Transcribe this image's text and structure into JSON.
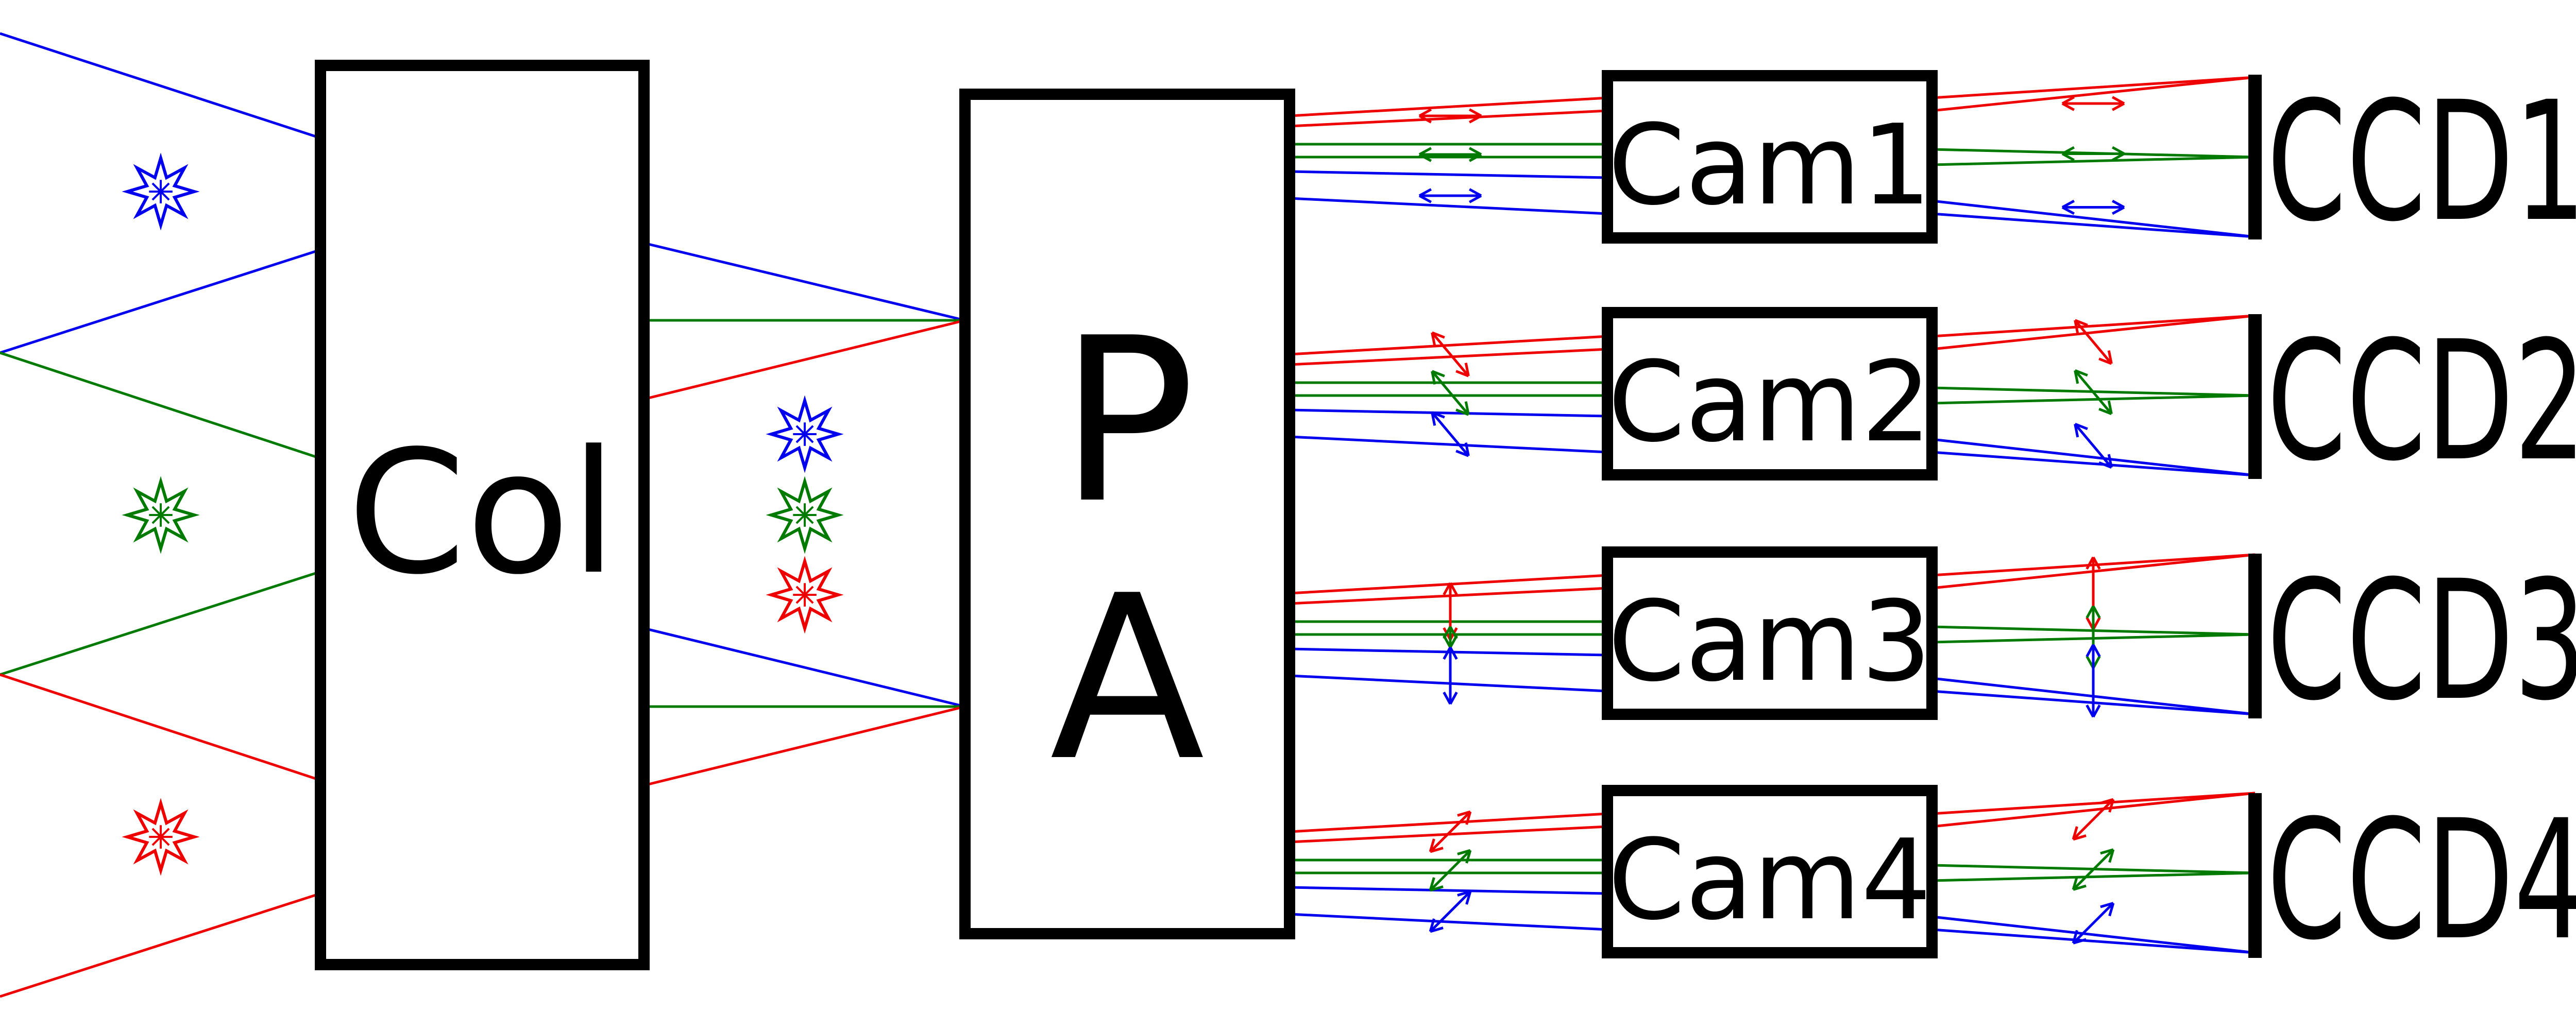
{
  "colors": {
    "blue": "#0000ee",
    "green": "#007a00",
    "red": "#ee0000",
    "box": "#000000"
  },
  "labels": {
    "collimator": "Col",
    "pa_top": "P",
    "pa_bottom": "A",
    "cameras": [
      "Cam1",
      "Cam2",
      "Cam3",
      "Cam4"
    ],
    "detectors": [
      "CCD1",
      "CCD2",
      "CCD3",
      "CCD4"
    ]
  },
  "channels": [
    {
      "camera": "Cam1",
      "detector": "CCD1",
      "polarization": "horizontal"
    },
    {
      "camera": "Cam2",
      "detector": "CCD2",
      "polarization": "diagonal-down"
    },
    {
      "camera": "Cam3",
      "detector": "CCD3",
      "polarization": "vertical"
    },
    {
      "camera": "Cam4",
      "detector": "CCD4",
      "polarization": "diagonal-up"
    }
  ],
  "source_stars": [
    "blue",
    "green",
    "red"
  ],
  "icons": [
    "star-burst-icon",
    "double-arrow-icon"
  ]
}
